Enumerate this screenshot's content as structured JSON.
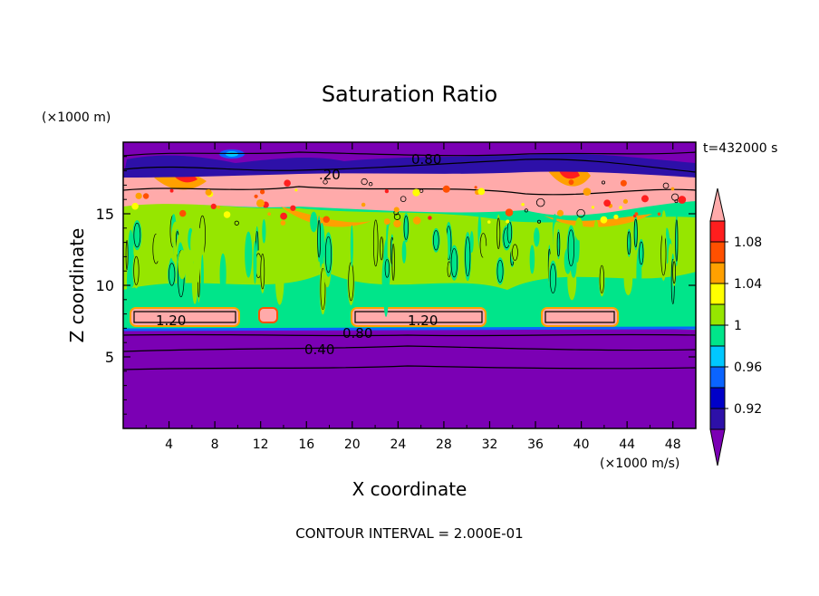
{
  "chart_data": {
    "type": "heatmap",
    "title": "Saturation Ratio",
    "xlabel": "X coordinate",
    "ylabel": "Z coordinate",
    "x_unit": "(×1000 m/s)",
    "y_unit": "(×1000 m)",
    "time_label": "t=432000 s",
    "footer": "CONTOUR INTERVAL = 2.000E-01",
    "xlim": [
      0,
      50
    ],
    "ylim": [
      0,
      20
    ],
    "x_ticks": [
      "4",
      "8",
      "12",
      "16",
      "20",
      "24",
      "28",
      "32",
      "36",
      "40",
      "44",
      "48"
    ],
    "y_ticks": [
      "5",
      "10",
      "15"
    ],
    "colorbar": {
      "levels": [
        0.9,
        0.92,
        0.94,
        0.96,
        0.98,
        1.0,
        1.02,
        1.04,
        1.06,
        1.08,
        1.1
      ],
      "tick_labels": [
        "0.92",
        "0.96",
        "1",
        "1.04",
        "1.08"
      ],
      "colors": [
        "#7B00B4",
        "#2D10A8",
        "#0000C8",
        "#0A64FF",
        "#00C8FF",
        "#00E58A",
        "#96E600",
        "#FFFF00",
        "#FFA000",
        "#FF5000",
        "#FF1E1E",
        "#FFAAAA"
      ]
    },
    "contour_labels": [
      "0.80",
      "1.20",
      "0.80",
      "1.20",
      "0.80",
      "0.40",
      "1.20"
    ],
    "regions": [
      {
        "z_range": [
          0,
          7
        ],
        "value": "< 0.90",
        "description_value": 0.4
      },
      {
        "z_range": [
          7,
          16
        ],
        "value": 1.0
      },
      {
        "z_range": [
          16,
          18
        ],
        "value": "> 1.10"
      },
      {
        "z_range": [
          18,
          20
        ],
        "value": "< 0.90"
      }
    ],
    "grid": false
  }
}
